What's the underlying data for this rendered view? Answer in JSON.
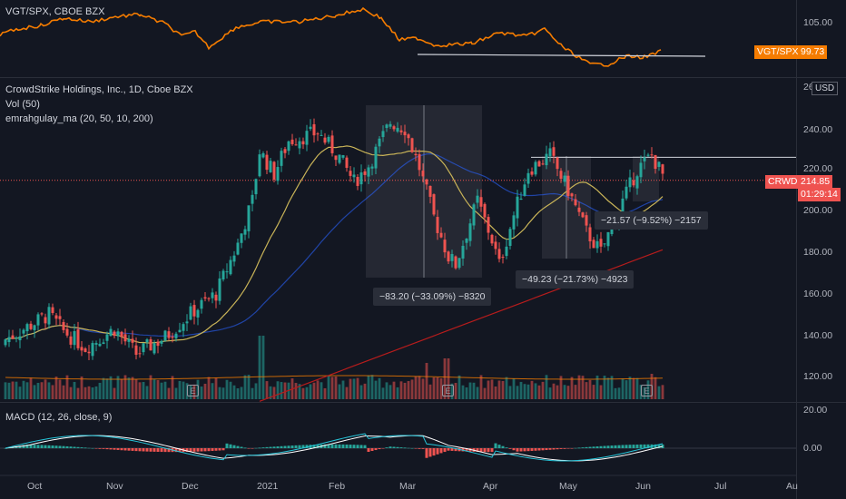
{
  "top_panel": {
    "title": "VGT/SPX, CBOE BZX",
    "tag_name": "VGT/SPX",
    "tag_value": "99.73",
    "axis_labels": [
      "105.00"
    ]
  },
  "main_panel": {
    "title": "CrowdStrike Holdings, Inc., 1D, Cboe BZX",
    "vol_label": "Vol (50)",
    "ma_label": "emrahgulay_ma (20, 50, 10, 200)",
    "currency": "USD",
    "tick_partial": "26",
    "axis_labels": [
      "240.00",
      "220.00",
      "200.00",
      "180.00",
      "160.00",
      "140.00",
      "120.00"
    ],
    "price_tag_symbol": "CRWD",
    "price_tag_value": "214.85",
    "price_tag_time": "01:29:14",
    "measure_1": "−83.20 (−33.09%) −8320",
    "measure_2": "−49.23 (−21.73%) −4923",
    "measure_3": "−21.57 (−9.52%) −2157",
    "earnings_badge": "E"
  },
  "macd_panel": {
    "title": "MACD (12, 26, close, 9)",
    "axis_labels": [
      "20.00",
      "0.00"
    ]
  },
  "time_axis": [
    "Oct",
    "Nov",
    "Dec",
    "2021",
    "Feb",
    "Mar",
    "Apr",
    "May",
    "Jun",
    "Jul",
    "Au"
  ],
  "colors": {
    "background": "#131722",
    "up": "#26a69a",
    "down": "#ef5350",
    "ratio_line": "#f57c00",
    "ma_fast": "#c9b458",
    "ma_mid": "#2962ff",
    "ma_long": "#b71c1c",
    "macd_line": "#26c6da",
    "signal_line": "#ffffff"
  },
  "chart_data": {
    "type": "candlestick",
    "symbol": "CRWD",
    "interval": "1D",
    "approx_key_prices": {
      "october_range": [
        130,
        155
      ],
      "late_december_high": 240,
      "february_peak": 251,
      "march_low": 168,
      "april_low": 168,
      "may_peak": 227,
      "may_low": 177,
      "june_peak": 227,
      "last": 214.85
    },
    "drawn_resistance_level": 226,
    "ratio_series_last": 99.73,
    "ratio_support_level": 100.6
  }
}
